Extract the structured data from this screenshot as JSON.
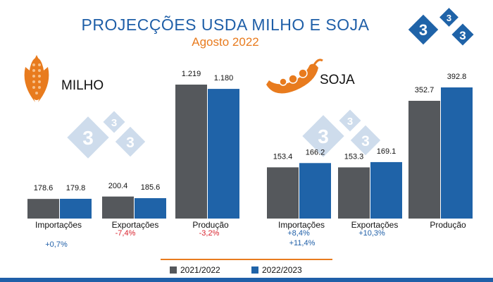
{
  "title": "PROJECÇÕES USDA MILHO E SOJA",
  "subtitle": "Agosto 2022",
  "milho_label": "MILHO",
  "soja_label": "SOJA",
  "colors": {
    "s2021": "#55585c",
    "s2022": "#1f63a8",
    "title": "#1f5fa8",
    "subtitle": "#e87b1e",
    "negative": "#d9232e",
    "positive": "#1f5fa8",
    "logo": "#1f63a8",
    "watermark": "#c9d9ea"
  },
  "chart_data": [
    {
      "type": "bar",
      "name": "milho",
      "categories": [
        "Importações",
        "Exportações",
        "Produção"
      ],
      "series": [
        {
          "name": "2021/2022",
          "values": [
            178.6,
            200.4,
            1219
          ],
          "labels": [
            "178.6",
            "200.4",
            "1.219"
          ]
        },
        {
          "name": "2022/2023",
          "values": [
            179.8,
            185.6,
            1180
          ],
          "labels": [
            "179.8",
            "185.6",
            "1.180"
          ]
        }
      ],
      "changes": [
        "+0,7%",
        "-7,4%",
        "-3,2%"
      ],
      "legend": "bottom"
    },
    {
      "type": "bar",
      "name": "soja",
      "categories": [
        "Importações",
        "Exportações",
        "Produção"
      ],
      "series": [
        {
          "name": "2021/2022",
          "values": [
            153.4,
            153.3,
            352.7
          ],
          "labels": [
            "153.4",
            "153.3",
            "352.7"
          ]
        },
        {
          "name": "2022/2023",
          "values": [
            166.2,
            169.1,
            392.8
          ],
          "labels": [
            "166.2",
            "169.1",
            "392.8"
          ]
        }
      ],
      "changes": [
        "+8,4%",
        "+10,3%",
        ""
      ],
      "extra_change": "+11,4%",
      "legend": "bottom"
    }
  ],
  "legend": {
    "items": [
      "2021/2022",
      "2022/2023"
    ]
  }
}
